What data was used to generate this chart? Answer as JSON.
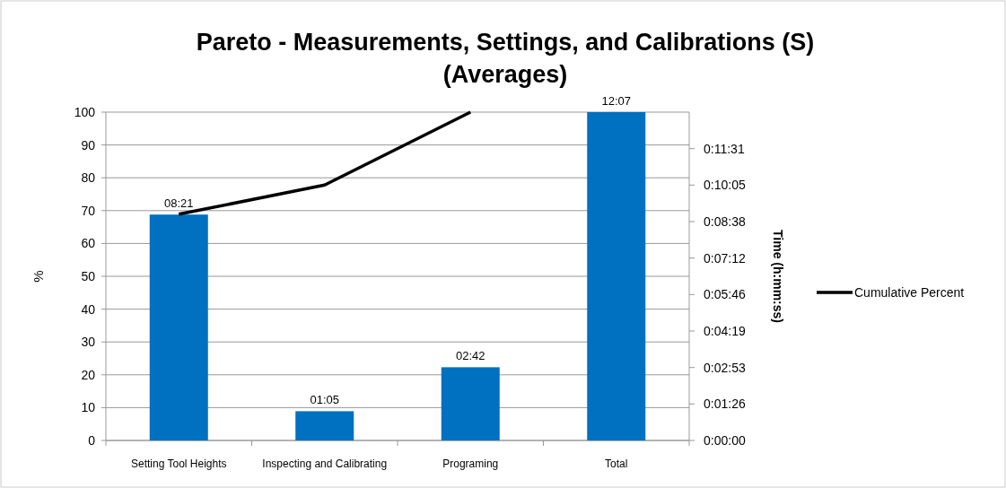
{
  "chart_data": {
    "type": "bar",
    "title": "Pareto - Measurements, Settings, and Calibrations (S)",
    "subtitle": "(Averages)",
    "ylabel": "%",
    "y2label": "Time (h:mm:ss)",
    "categories": [
      "Setting Tool Heights",
      "Inspecting and Calibrating",
      "Programing",
      "Total"
    ],
    "series": [
      {
        "color": "#0070c0",
        "values": [
          68.8,
          8.9,
          22.3,
          100
        ]
      },
      {
        "type": "line",
        "name": "Cumulative Percent",
        "color": "#000000",
        "values": [
          68.9,
          77.8,
          100,
          null
        ],
        "line_style": "solid",
        "marker": "none"
      }
    ],
    "ylim": [
      0,
      100
    ],
    "yticks": [
      0,
      10,
      20,
      30,
      40,
      50,
      60,
      70,
      80,
      90,
      100
    ],
    "y2lim": [
      0,
      777.6
    ],
    "y2ticks": [
      {
        "value": 0,
        "label": "0:00:00"
      },
      {
        "value": 86.4,
        "label": "0:01:26"
      },
      {
        "value": 172.8,
        "label": "0:02:53"
      },
      {
        "value": 259.2,
        "label": "0:04:19"
      },
      {
        "value": 345.6,
        "label": "0:05:46"
      },
      {
        "value": 432,
        "label": "0:07:12"
      },
      {
        "value": 518.4,
        "label": "0:08:38"
      },
      {
        "value": 604.8,
        "label": "0:10:05"
      },
      {
        "value": 691.2,
        "label": "0:11:31"
      }
    ],
    "annotations": [
      {
        "text": "08:21",
        "x": "Setting Tool Heights",
        "y": 68.8
      },
      {
        "text": "01:05",
        "x": "Inspecting and Calibrating",
        "y": 8.9
      },
      {
        "text": "02:42",
        "x": "Programing",
        "y": 22.3
      },
      {
        "text": "12:07",
        "x": "Total",
        "y": 100
      }
    ],
    "grid": "y",
    "legend": "right"
  }
}
